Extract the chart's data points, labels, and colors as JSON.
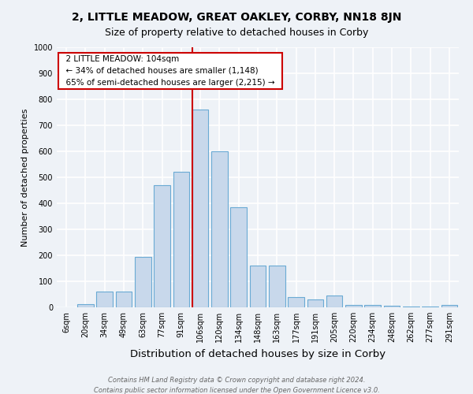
{
  "title": "2, LITTLE MEADOW, GREAT OAKLEY, CORBY, NN18 8JN",
  "subtitle": "Size of property relative to detached houses in Corby",
  "xlabel": "Distribution of detached houses by size in Corby",
  "ylabel": "Number of detached properties",
  "footnote1": "Contains HM Land Registry data © Crown copyright and database right 2024.",
  "footnote2": "Contains public sector information licensed under the Open Government Licence v3.0.",
  "annotation_title": "2 LITTLE MEADOW: 104sqm",
  "annotation_line1": "← 34% of detached houses are smaller (1,148)",
  "annotation_line2": "65% of semi-detached houses are larger (2,215) →",
  "bar_labels": [
    "6sqm",
    "20sqm",
    "34sqm",
    "49sqm",
    "63sqm",
    "77sqm",
    "91sqm",
    "106sqm",
    "120sqm",
    "134sqm",
    "148sqm",
    "163sqm",
    "177sqm",
    "191sqm",
    "205sqm",
    "220sqm",
    "234sqm",
    "248sqm",
    "262sqm",
    "277sqm",
    "291sqm"
  ],
  "bar_values": [
    0,
    13,
    60,
    60,
    195,
    470,
    520,
    760,
    600,
    385,
    160,
    160,
    40,
    30,
    45,
    10,
    8,
    5,
    3,
    3,
    8
  ],
  "bar_color": "#c8d8eb",
  "bar_edge_color": "#6aaad4",
  "vline_color": "#cc0000",
  "vline_bar_index": 7,
  "annotation_box_color": "#ffffff",
  "annotation_box_edge": "#cc0000",
  "ylim": [
    0,
    1000
  ],
  "yticks": [
    0,
    100,
    200,
    300,
    400,
    500,
    600,
    700,
    800,
    900,
    1000
  ],
  "background_color": "#eef2f7",
  "axes_background": "#eef2f7",
  "grid_color": "#ffffff",
  "title_fontsize": 10,
  "subtitle_fontsize": 9,
  "xlabel_fontsize": 9.5,
  "ylabel_fontsize": 8,
  "tick_fontsize": 7,
  "annotation_fontsize": 7.5,
  "footnote_fontsize": 6
}
